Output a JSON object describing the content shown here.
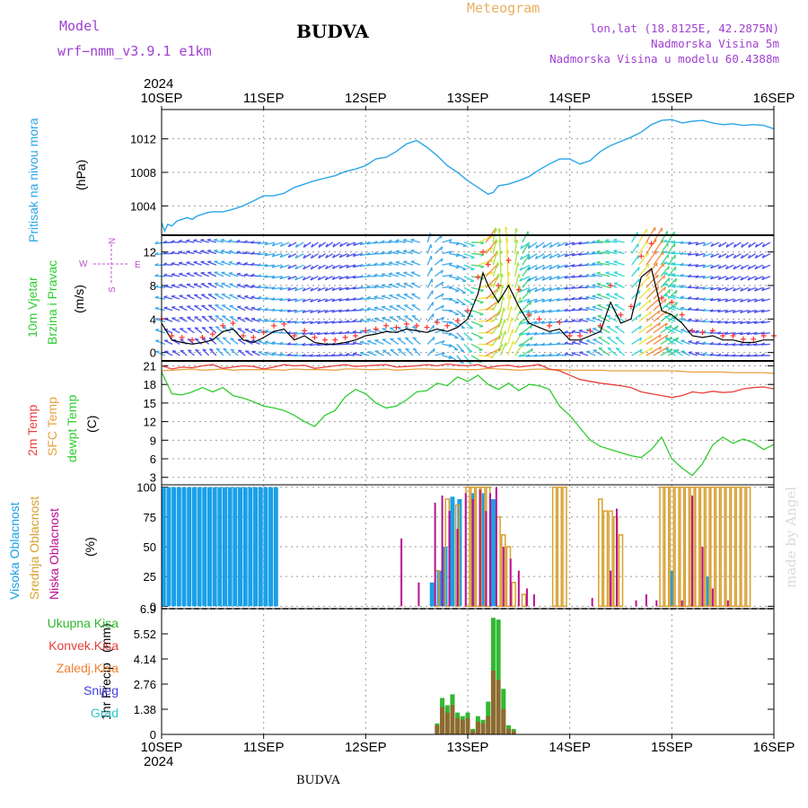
{
  "header": {
    "model_label": "Model",
    "model_name": "wrf−nmm_v3.9.1  e1km",
    "title": "BUDVA",
    "meteogram_label": "Meteogram",
    "lonlat": "lon,lat (18.8125E, 42.2875N)",
    "elevation": "Nadmorska Visina 5m",
    "model_elevation": "Nadmorska Visina u modelu 60.4388m",
    "year_top": "2024",
    "year_bottom": "2024"
  },
  "footer": {
    "location": "BUDVA",
    "made_by": "made by Angel"
  },
  "time_axis": {
    "labels": [
      "10SEP",
      "11SEP",
      "12SEP",
      "13SEP",
      "14SEP",
      "15SEP",
      "16SEP"
    ],
    "unit": "days since 10SEP"
  },
  "colors": {
    "pressure": "#2aa6e8",
    "temp2m": "#e8403a",
    "sfc": "#e8a040",
    "dewpt": "#2fcc2f",
    "high_cloud": "#1aa0e8",
    "mid_cloud": "#d8a030",
    "low_cloud": "#b81090",
    "total_precip": "#30b830",
    "conv_precip": "#e83c3c",
    "frozen": "#f08030",
    "snow": "#4040e0",
    "hail": "#30c8c8",
    "wind_speed": "#000000",
    "gust": "#ff3030"
  },
  "chart_data": [
    {
      "type": "line",
      "name": "pressure",
      "ylabel_a": "Pritisak na nivou mora",
      "ylabel_b": "(hPa)",
      "ylim": [
        1000.5,
        1015.5
      ],
      "yticks": [
        1004,
        1008,
        1012
      ],
      "x": [
        0,
        0.03,
        0.06,
        0.1,
        0.15,
        0.2,
        0.25,
        0.3,
        0.35,
        0.4,
        0.45,
        0.5,
        0.6,
        0.7,
        0.8,
        0.9,
        1.0,
        1.1,
        1.2,
        1.3,
        1.4,
        1.5,
        1.6,
        1.7,
        1.8,
        1.9,
        2.0,
        2.1,
        2.2,
        2.3,
        2.4,
        2.5,
        2.6,
        2.7,
        2.8,
        2.9,
        3.0,
        3.1,
        3.2,
        3.25,
        3.3,
        3.4,
        3.5,
        3.6,
        3.7,
        3.8,
        3.9,
        4.0,
        4.1,
        4.2,
        4.3,
        4.4,
        4.5,
        4.6,
        4.7,
        4.8,
        4.9,
        5.0,
        5.1,
        5.2,
        5.3,
        5.4,
        5.5,
        5.6,
        5.7,
        5.8,
        5.9,
        6.0
      ],
      "y": [
        1002.0,
        1001.0,
        1001.8,
        1001.6,
        1002.2,
        1002.4,
        1002.6,
        1002.4,
        1002.8,
        1003.0,
        1003.2,
        1003.3,
        1003.3,
        1003.6,
        1004.0,
        1004.6,
        1005.2,
        1005.2,
        1005.5,
        1006.2,
        1006.6,
        1007.0,
        1007.3,
        1007.6,
        1008.1,
        1008.4,
        1008.8,
        1009.6,
        1009.8,
        1010.5,
        1011.4,
        1011.8,
        1011.0,
        1010.0,
        1008.8,
        1008.0,
        1007.0,
        1006.2,
        1005.4,
        1005.6,
        1006.4,
        1006.6,
        1007.0,
        1007.5,
        1008.3,
        1009.0,
        1009.6,
        1009.6,
        1009.0,
        1009.4,
        1010.5,
        1011.2,
        1011.7,
        1012.2,
        1012.8,
        1013.7,
        1014.2,
        1014.3,
        1013.9,
        1014.1,
        1014.2,
        1013.9,
        1013.7,
        1013.8,
        1013.6,
        1013.7,
        1013.6,
        1013.2
      ]
    },
    {
      "type": "line",
      "name": "wind",
      "ylabel_a": "10m Vjetar",
      "ylabel_b": "Brzina i Pravac",
      "ylabel_c": "(m/s)",
      "compass_n": "N",
      "compass_e": "E",
      "compass_w": "W",
      "compass_s": "S",
      "ylim": [
        -1,
        14
      ],
      "yticks": [
        0,
        4,
        8,
        12
      ],
      "x": [
        0,
        0.1,
        0.2,
        0.3,
        0.4,
        0.5,
        0.6,
        0.7,
        0.8,
        0.9,
        1.0,
        1.1,
        1.2,
        1.3,
        1.4,
        1.5,
        1.6,
        1.7,
        1.8,
        1.9,
        2.0,
        2.1,
        2.2,
        2.3,
        2.4,
        2.5,
        2.6,
        2.7,
        2.8,
        2.9,
        3.0,
        3.1,
        3.15,
        3.2,
        3.3,
        3.4,
        3.5,
        3.6,
        3.7,
        3.8,
        3.9,
        4.0,
        4.1,
        4.2,
        4.3,
        4.4,
        4.5,
        4.6,
        4.7,
        4.8,
        4.9,
        5.0,
        5.1,
        5.2,
        5.3,
        5.4,
        5.5,
        5.6,
        5.7,
        5.8,
        5.9,
        6.0
      ],
      "speed": [
        3.5,
        1.5,
        1.2,
        1.0,
        1.2,
        1.5,
        2.5,
        2.8,
        1.5,
        1.2,
        1.8,
        2.5,
        2.8,
        1.5,
        2.0,
        1.2,
        1.0,
        1.0,
        1.2,
        1.5,
        2.0,
        2.2,
        2.5,
        2.4,
        2.8,
        2.6,
        2.4,
        2.8,
        2.5,
        3.0,
        4.0,
        7.0,
        9.5,
        8.0,
        6.0,
        8.0,
        5.5,
        3.5,
        3.0,
        2.5,
        2.8,
        1.5,
        1.5,
        2.0,
        2.5,
        6.0,
        3.5,
        4.0,
        9.0,
        10.0,
        5.0,
        4.5,
        3.5,
        2.0,
        1.8,
        2.0,
        1.5,
        1.5,
        1.2,
        1.2,
        1.5,
        1.5
      ],
      "gust": [
        4.0,
        2.0,
        1.8,
        1.5,
        1.8,
        2.2,
        3.2,
        3.5,
        2.0,
        1.8,
        2.4,
        3.2,
        3.4,
        2.0,
        2.6,
        1.8,
        1.5,
        1.5,
        1.8,
        2.0,
        2.6,
        2.8,
        3.2,
        3.0,
        3.4,
        3.2,
        3.0,
        3.6,
        3.2,
        3.8,
        5.0,
        9.0,
        12.0,
        10.5,
        8.0,
        11.0,
        7.5,
        4.5,
        4.0,
        3.2,
        3.6,
        2.0,
        2.0,
        2.6,
        3.2,
        8.0,
        4.5,
        5.5,
        11.5,
        13.0,
        6.5,
        6.0,
        4.5,
        2.6,
        2.4,
        2.6,
        2.0,
        2.0,
        1.6,
        1.6,
        2.0,
        2.0
      ]
    },
    {
      "type": "line",
      "name": "temperature",
      "ylabel_a": "2m Temp",
      "ylabel_b": "SFC Temp",
      "ylabel_c": "dewpt Temp",
      "ylabel_d": "(C)",
      "ylim": [
        1.8,
        21.8
      ],
      "yticks": [
        3,
        6,
        9,
        12,
        15,
        18,
        21
      ],
      "x": [
        0,
        0.1,
        0.2,
        0.3,
        0.4,
        0.5,
        0.6,
        0.7,
        0.8,
        0.9,
        1.0,
        1.1,
        1.2,
        1.3,
        1.4,
        1.5,
        1.6,
        1.7,
        1.8,
        1.9,
        2.0,
        2.1,
        2.2,
        2.3,
        2.4,
        2.5,
        2.6,
        2.7,
        2.8,
        2.9,
        3.0,
        3.1,
        3.2,
        3.3,
        3.4,
        3.5,
        3.6,
        3.7,
        3.8,
        3.9,
        4.0,
        4.1,
        4.2,
        4.3,
        4.4,
        4.5,
        4.6,
        4.7,
        4.8,
        4.9,
        5.0,
        5.1,
        5.2,
        5.3,
        5.4,
        5.5,
        5.6,
        5.7,
        5.8,
        5.9,
        6.0
      ],
      "t2m": [
        21.0,
        20.5,
        20.8,
        20.7,
        21.0,
        21.2,
        20.6,
        20.8,
        21.0,
        20.9,
        20.5,
        20.8,
        21.2,
        21.0,
        21.1,
        20.6,
        20.8,
        21.0,
        21.2,
        20.9,
        21.0,
        21.1,
        21.2,
        20.8,
        20.9,
        21.0,
        21.2,
        21.0,
        21.3,
        21.1,
        21.0,
        21.2,
        20.7,
        21.0,
        21.1,
        20.8,
        21.0,
        21.2,
        20.5,
        20.2,
        19.5,
        18.8,
        18.5,
        18.2,
        18.0,
        17.8,
        17.5,
        16.8,
        16.5,
        16.2,
        15.9,
        16.2,
        16.8,
        16.6,
        16.9,
        16.7,
        16.8,
        17.3,
        17.5,
        17.6,
        17.3
      ],
      "sfc": [
        20.2,
        20.3,
        20.4,
        20.5,
        20.3,
        20.4,
        20.5,
        20.3,
        20.4,
        20.4,
        20.4,
        20.4,
        20.3,
        20.5,
        20.4,
        20.4,
        20.4,
        20.3,
        20.5,
        20.5,
        20.4,
        20.4,
        20.5,
        20.3,
        20.4,
        20.5,
        20.5,
        20.4,
        20.5,
        20.4,
        20.4,
        20.4,
        20.6,
        20.5,
        20.4,
        20.3,
        20.4,
        20.5,
        20.4,
        20.4,
        20.3,
        20.3,
        20.3,
        20.3,
        20.2,
        20.2,
        20.2,
        20.2,
        20.2,
        20.2,
        20.2,
        20.1,
        20.0,
        20.0,
        20.0,
        20.0,
        19.9,
        19.9,
        19.9,
        19.9,
        19.8
      ],
      "dewpt": [
        20.0,
        16.5,
        16.3,
        16.8,
        17.5,
        16.8,
        17.5,
        16.2,
        15.8,
        15.2,
        14.5,
        14.2,
        13.8,
        13.0,
        12.0,
        11.2,
        13.0,
        13.8,
        16.0,
        17.2,
        16.5,
        15.0,
        14.2,
        14.5,
        15.5,
        16.8,
        17.0,
        18.2,
        17.8,
        19.2,
        18.5,
        19.5,
        18.0,
        17.2,
        18.2,
        17.0,
        18.0,
        17.8,
        17.2,
        14.5,
        13.0,
        11.0,
        9.0,
        8.0,
        7.5,
        7.0,
        6.5,
        6.2,
        7.5,
        9.5,
        6.0,
        4.5,
        3.3,
        5.2,
        8.2,
        9.5,
        8.5,
        9.2,
        8.6,
        7.5,
        8.3
      ]
    },
    {
      "type": "bar",
      "name": "cloud",
      "ylabel_a": "Visoka Oblacnost",
      "ylabel_b": "Srednja Oblacnost",
      "ylabel_c": "Niska Oblacnost",
      "ylabel_d": "(%)",
      "ylim": [
        -2,
        102
      ],
      "yticks": [
        0,
        25,
        50,
        75,
        100
      ],
      "series": [
        {
          "name": "high",
          "x": [
            0.02,
            0.07,
            0.12,
            0.17,
            0.22,
            0.27,
            0.32,
            0.37,
            0.42,
            0.47,
            0.52,
            0.57,
            0.62,
            0.67,
            0.72,
            0.77,
            0.82,
            0.87,
            0.92,
            0.97,
            1.02,
            1.07,
            1.12,
            2.65,
            2.72,
            2.78,
            2.85,
            2.92,
            3.05,
            3.15,
            3.25,
            5.0,
            5.35
          ],
          "values": [
            100,
            100,
            100,
            100,
            100,
            100,
            100,
            100,
            100,
            100,
            100,
            100,
            100,
            100,
            100,
            100,
            100,
            100,
            100,
            100,
            100,
            100,
            100,
            20,
            30,
            50,
            92,
            90,
            95,
            95,
            90,
            30,
            25
          ]
        },
        {
          "name": "mid",
          "x": [
            2.7,
            2.8,
            2.9,
            3.0,
            3.05,
            3.1,
            3.15,
            3.2,
            3.3,
            3.35,
            3.4,
            3.45,
            3.55,
            3.85,
            3.9,
            3.95,
            4.3,
            4.35,
            4.4,
            4.45,
            4.5,
            4.9,
            4.95,
            5.0,
            5.05,
            5.1,
            5.15,
            5.2,
            5.25,
            5.3,
            5.35,
            5.4,
            5.45,
            5.5,
            5.55,
            5.6,
            5.65,
            5.7,
            5.75
          ],
          "values": [
            30,
            90,
            85,
            100,
            100,
            100,
            100,
            100,
            75,
            60,
            50,
            20,
            10,
            100,
            100,
            100,
            90,
            80,
            80,
            75,
            60,
            100,
            100,
            100,
            100,
            100,
            100,
            100,
            100,
            100,
            100,
            100,
            100,
            100,
            100,
            100,
            100,
            100,
            100
          ]
        },
        {
          "name": "low",
          "x": [
            2.35,
            2.52,
            2.68,
            2.75,
            2.82,
            2.9,
            2.98,
            3.05,
            3.12,
            3.18,
            3.22,
            3.28,
            3.35,
            3.42,
            3.5,
            3.58,
            3.65,
            4.22,
            4.4,
            4.46,
            4.65,
            4.75,
            4.85,
            5.1,
            5.2,
            5.3,
            5.4,
            5.55
          ],
          "values": [
            57,
            20,
            87,
            93,
            80,
            65,
            95,
            90,
            98,
            80,
            95,
            100,
            50,
            40,
            30,
            15,
            10,
            7,
            30,
            82,
            5,
            10,
            5,
            5,
            93,
            50,
            15,
            5
          ]
        }
      ]
    },
    {
      "type": "bar",
      "name": "precip",
      "ylabel_a": "1hr Precip",
      "ylabel_b": "(mm)",
      "legend": [
        "Ukupna Kisa",
        "Konvek.Kisa",
        "Zaledj.Kisa",
        "Snijeg",
        "Grad"
      ],
      "ylim": [
        0,
        6.9
      ],
      "yticks": [
        0,
        1.38,
        2.76,
        4.14,
        5.52,
        6.9
      ],
      "ytick_labels": [
        "0",
        "1.38",
        "2.76",
        "4.14",
        "5.52",
        "6.9"
      ],
      "x": [
        2.7,
        2.75,
        2.8,
        2.85,
        2.9,
        2.95,
        3.0,
        3.05,
        3.1,
        3.15,
        3.2,
        3.25,
        3.3,
        3.35,
        3.4,
        3.45
      ],
      "total": [
        0.6,
        2.0,
        1.6,
        2.2,
        1.2,
        1.0,
        1.2,
        0.3,
        1.0,
        0.8,
        1.8,
        6.4,
        6.3,
        2.5,
        0.5,
        0.3
      ],
      "conv": [
        0.5,
        1.5,
        1.2,
        1.6,
        0.9,
        0.8,
        0.9,
        0.2,
        0.7,
        0.6,
        1.0,
        3.5,
        3.0,
        1.4,
        0.3,
        0.2
      ]
    }
  ]
}
